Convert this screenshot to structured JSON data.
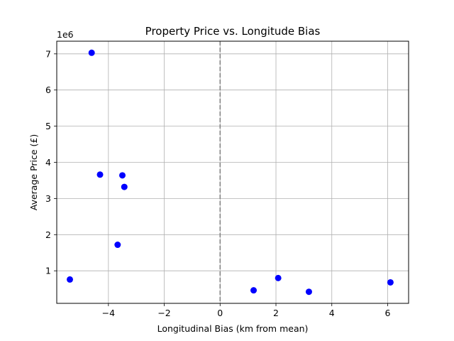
{
  "chart_data": {
    "type": "scatter",
    "title": "Property Price vs. Longitude Bias",
    "xlabel": "Longitudinal Bias (km from mean)",
    "ylabel": "Average Price (£)",
    "y_offset_label": "1e6",
    "xlim": [
      -5.85,
      6.75
    ],
    "ylim": [
      0.1,
      7.35
    ],
    "y_scale_multiplier": 1000000,
    "x_ticks": [
      {
        "value": -4,
        "label": "−4"
      },
      {
        "value": -2,
        "label": "−2"
      },
      {
        "value": 0,
        "label": "0"
      },
      {
        "value": 2,
        "label": "2"
      },
      {
        "value": 4,
        "label": "4"
      },
      {
        "value": 6,
        "label": "6"
      }
    ],
    "y_ticks": [
      {
        "value": 1,
        "label": "1"
      },
      {
        "value": 2,
        "label": "2"
      },
      {
        "value": 3,
        "label": "3"
      },
      {
        "value": 4,
        "label": "4"
      },
      {
        "value": 5,
        "label": "5"
      },
      {
        "value": 6,
        "label": "6"
      },
      {
        "value": 7,
        "label": "7"
      }
    ],
    "grid": true,
    "reference_line": {
      "x": 0,
      "style": "dashed",
      "color": "#808080"
    },
    "marker_color": "#0000ff",
    "points": [
      {
        "x": -4.6,
        "y": 7.03
      },
      {
        "x": -4.3,
        "y": 3.66
      },
      {
        "x": -3.5,
        "y": 3.64
      },
      {
        "x": -3.43,
        "y": 3.32
      },
      {
        "x": -3.67,
        "y": 1.72
      },
      {
        "x": -5.38,
        "y": 0.76
      },
      {
        "x": 1.2,
        "y": 0.46
      },
      {
        "x": 2.08,
        "y": 0.8
      },
      {
        "x": 3.18,
        "y": 0.42
      },
      {
        "x": 6.1,
        "y": 0.68
      }
    ]
  }
}
